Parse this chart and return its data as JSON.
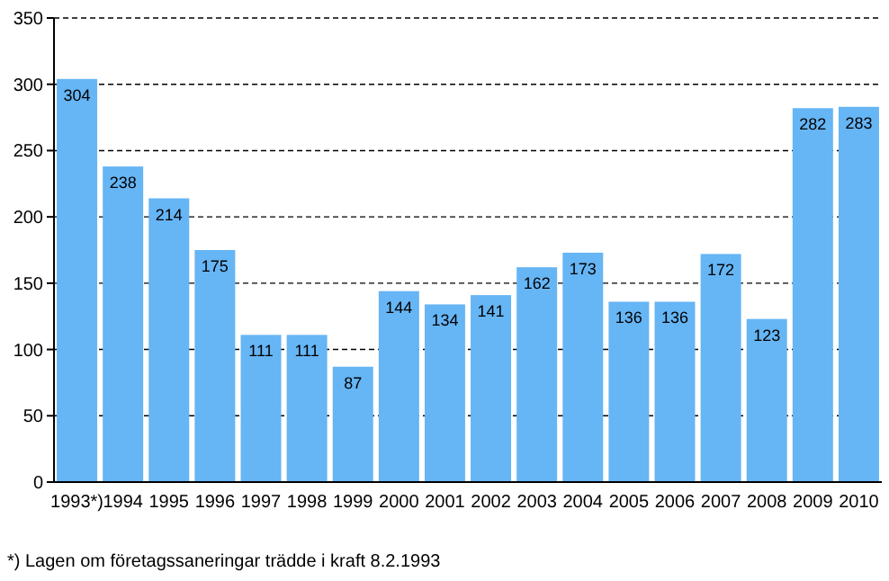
{
  "chart_data": {
    "type": "bar",
    "categories": [
      "1993*)",
      "1994",
      "1995",
      "1996",
      "1997",
      "1998",
      "1999",
      "2000",
      "2001",
      "2002",
      "2003",
      "2004",
      "2005",
      "2006",
      "2007",
      "2008",
      "2009",
      "2010"
    ],
    "values": [
      304,
      238,
      214,
      175,
      111,
      111,
      87,
      144,
      134,
      141,
      162,
      173,
      136,
      136,
      172,
      123,
      282,
      283
    ],
    "color": "#66b5f5",
    "ylim": [
      0,
      350
    ],
    "yticks": [
      0,
      50,
      100,
      150,
      200,
      250,
      300,
      350
    ],
    "grid": "y",
    "data_labels": true,
    "annotations": [
      "*) Lagen om företagssaneringar trädde i kraft 8.2.1993"
    ]
  }
}
